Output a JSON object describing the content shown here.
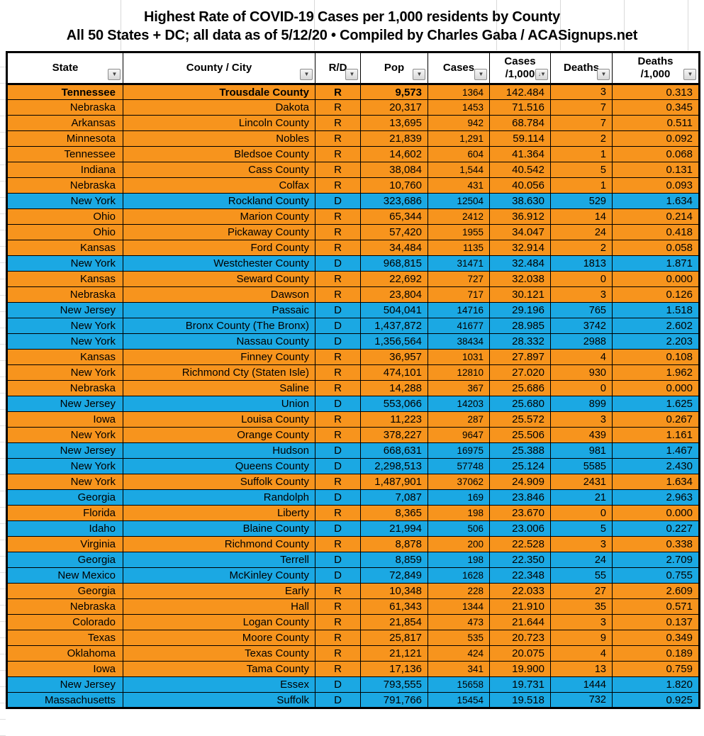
{
  "title": {
    "line1": "Highest Rate of COVID-19 Cases per 1,000 residents by County",
    "line2": "All 50 States + DC; all data as of 5/12/20  • Compiled by Charles Gaba / ACASignups.net"
  },
  "icons": {
    "filter": "▼",
    "filter_sorted": "↓▼"
  },
  "colors": {
    "republican_row": "#F7941D",
    "democrat_row": "#1BA8E3"
  },
  "table": {
    "columns": [
      {
        "key": "state",
        "label": "State"
      },
      {
        "key": "county",
        "label": "County / City"
      },
      {
        "key": "rd",
        "label": "R/D"
      },
      {
        "key": "pop",
        "label": "Pop"
      },
      {
        "key": "cases",
        "label": "Cases"
      },
      {
        "key": "cases_per_1000",
        "label": "Cases\n/1,000",
        "sorted": "desc"
      },
      {
        "key": "deaths",
        "label": "Deaths"
      },
      {
        "key": "deaths_per_1000",
        "label": "Deaths\n/1,000"
      }
    ],
    "rows": [
      {
        "state": "Tennessee",
        "county": "Trousdale County",
        "rd": "R",
        "pop": "9,573",
        "cases": "1364",
        "cases_per_1000": "142.484",
        "deaths": "3",
        "deaths_per_1000": "0.313",
        "bold": true
      },
      {
        "state": "Nebraska",
        "county": "Dakota",
        "rd": "R",
        "pop": "20,317",
        "cases": "1453",
        "cases_per_1000": "71.516",
        "deaths": "7",
        "deaths_per_1000": "0.345"
      },
      {
        "state": "Arkansas",
        "county": "Lincoln County",
        "rd": "R",
        "pop": "13,695",
        "cases": "942",
        "cases_per_1000": "68.784",
        "deaths": "7",
        "deaths_per_1000": "0.511"
      },
      {
        "state": "Minnesota",
        "county": "Nobles",
        "rd": "R",
        "pop": "21,839",
        "cases": "1,291",
        "cases_per_1000": "59.114",
        "deaths": "2",
        "deaths_per_1000": "0.092"
      },
      {
        "state": "Tennessee",
        "county": "Bledsoe County",
        "rd": "R",
        "pop": "14,602",
        "cases": "604",
        "cases_per_1000": "41.364",
        "deaths": "1",
        "deaths_per_1000": "0.068"
      },
      {
        "state": "Indiana",
        "county": "Cass County",
        "rd": "R",
        "pop": "38,084",
        "cases": "1,544",
        "cases_per_1000": "40.542",
        "deaths": "5",
        "deaths_per_1000": "0.131"
      },
      {
        "state": "Nebraska",
        "county": "Colfax",
        "rd": "R",
        "pop": "10,760",
        "cases": "431",
        "cases_per_1000": "40.056",
        "deaths": "1",
        "deaths_per_1000": "0.093"
      },
      {
        "state": "New York",
        "county": "Rockland County",
        "rd": "D",
        "pop": "323,686",
        "cases": "12504",
        "cases_per_1000": "38.630",
        "deaths": "529",
        "deaths_per_1000": "1.634"
      },
      {
        "state": "Ohio",
        "county": "Marion County",
        "rd": "R",
        "pop": "65,344",
        "cases": "2412",
        "cases_per_1000": "36.912",
        "deaths": "14",
        "deaths_per_1000": "0.214"
      },
      {
        "state": "Ohio",
        "county": "Pickaway County",
        "rd": "R",
        "pop": "57,420",
        "cases": "1955",
        "cases_per_1000": "34.047",
        "deaths": "24",
        "deaths_per_1000": "0.418"
      },
      {
        "state": "Kansas",
        "county": "Ford County",
        "rd": "R",
        "pop": "34,484",
        "cases": "1135",
        "cases_per_1000": "32.914",
        "deaths": "2",
        "deaths_per_1000": "0.058"
      },
      {
        "state": "New York",
        "county": "Westchester County",
        "rd": "D",
        "pop": "968,815",
        "cases": "31471",
        "cases_per_1000": "32.484",
        "deaths": "1813",
        "deaths_per_1000": "1.871"
      },
      {
        "state": "Kansas",
        "county": "Seward County",
        "rd": "R",
        "pop": "22,692",
        "cases": "727",
        "cases_per_1000": "32.038",
        "deaths": "0",
        "deaths_per_1000": "0.000"
      },
      {
        "state": "Nebraska",
        "county": "Dawson",
        "rd": "R",
        "pop": "23,804",
        "cases": "717",
        "cases_per_1000": "30.121",
        "deaths": "3",
        "deaths_per_1000": "0.126"
      },
      {
        "state": "New Jersey",
        "county": "Passaic",
        "rd": "D",
        "pop": "504,041",
        "cases": "14716",
        "cases_per_1000": "29.196",
        "deaths": "765",
        "deaths_per_1000": "1.518"
      },
      {
        "state": "New York",
        "county": "Bronx County (The Bronx)",
        "rd": "D",
        "pop": "1,437,872",
        "cases": "41677",
        "cases_per_1000": "28.985",
        "deaths": "3742",
        "deaths_per_1000": "2.602"
      },
      {
        "state": "New York",
        "county": "Nassau County",
        "rd": "D",
        "pop": "1,356,564",
        "cases": "38434",
        "cases_per_1000": "28.332",
        "deaths": "2988",
        "deaths_per_1000": "2.203"
      },
      {
        "state": "Kansas",
        "county": "Finney County",
        "rd": "R",
        "pop": "36,957",
        "cases": "1031",
        "cases_per_1000": "27.897",
        "deaths": "4",
        "deaths_per_1000": "0.108"
      },
      {
        "state": "New York",
        "county": "Richmond Cty (Staten Isle)",
        "rd": "R",
        "pop": "474,101",
        "cases": "12810",
        "cases_per_1000": "27.020",
        "deaths": "930",
        "deaths_per_1000": "1.962"
      },
      {
        "state": "Nebraska",
        "county": "Saline",
        "rd": "R",
        "pop": "14,288",
        "cases": "367",
        "cases_per_1000": "25.686",
        "deaths": "0",
        "deaths_per_1000": "0.000"
      },
      {
        "state": "New Jersey",
        "county": "Union",
        "rd": "D",
        "pop": "553,066",
        "cases": "14203",
        "cases_per_1000": "25.680",
        "deaths": "899",
        "deaths_per_1000": "1.625"
      },
      {
        "state": "Iowa",
        "county": "Louisa County",
        "rd": "R",
        "pop": "11,223",
        "cases": "287",
        "cases_per_1000": "25.572",
        "deaths": "3",
        "deaths_per_1000": "0.267"
      },
      {
        "state": "New York",
        "county": "Orange County",
        "rd": "R",
        "pop": "378,227",
        "cases": "9647",
        "cases_per_1000": "25.506",
        "deaths": "439",
        "deaths_per_1000": "1.161"
      },
      {
        "state": "New Jersey",
        "county": "Hudson",
        "rd": "D",
        "pop": "668,631",
        "cases": "16975",
        "cases_per_1000": "25.388",
        "deaths": "981",
        "deaths_per_1000": "1.467"
      },
      {
        "state": "New York",
        "county": "Queens County",
        "rd": "D",
        "pop": "2,298,513",
        "cases": "57748",
        "cases_per_1000": "25.124",
        "deaths": "5585",
        "deaths_per_1000": "2.430"
      },
      {
        "state": "New York",
        "county": "Suffolk County",
        "rd": "R",
        "pop": "1,487,901",
        "cases": "37062",
        "cases_per_1000": "24.909",
        "deaths": "2431",
        "deaths_per_1000": "1.634"
      },
      {
        "state": "Georgia",
        "county": "Randolph",
        "rd": "D",
        "pop": "7,087",
        "cases": "169",
        "cases_per_1000": "23.846",
        "deaths": "21",
        "deaths_per_1000": "2.963"
      },
      {
        "state": "Florida",
        "county": "Liberty",
        "rd": "R",
        "pop": "8,365",
        "cases": "198",
        "cases_per_1000": "23.670",
        "deaths": "0",
        "deaths_per_1000": "0.000"
      },
      {
        "state": "Idaho",
        "county": "Blaine County",
        "rd": "D",
        "pop": "21,994",
        "cases": "506",
        "cases_per_1000": "23.006",
        "deaths": "5",
        "deaths_per_1000": "0.227"
      },
      {
        "state": "Virginia",
        "county": "Richmond County",
        "rd": "R",
        "pop": "8,878",
        "cases": "200",
        "cases_per_1000": "22.528",
        "deaths": "3",
        "deaths_per_1000": "0.338"
      },
      {
        "state": "Georgia",
        "county": "Terrell",
        "rd": "D",
        "pop": "8,859",
        "cases": "198",
        "cases_per_1000": "22.350",
        "deaths": "24",
        "deaths_per_1000": "2.709"
      },
      {
        "state": "New Mexico",
        "county": "McKinley County",
        "rd": "D",
        "pop": "72,849",
        "cases": "1628",
        "cases_per_1000": "22.348",
        "deaths": "55",
        "deaths_per_1000": "0.755"
      },
      {
        "state": "Georgia",
        "county": "Early",
        "rd": "R",
        "pop": "10,348",
        "cases": "228",
        "cases_per_1000": "22.033",
        "deaths": "27",
        "deaths_per_1000": "2.609"
      },
      {
        "state": "Nebraska",
        "county": "Hall",
        "rd": "R",
        "pop": "61,343",
        "cases": "1344",
        "cases_per_1000": "21.910",
        "deaths": "35",
        "deaths_per_1000": "0.571"
      },
      {
        "state": "Colorado",
        "county": "Logan County",
        "rd": "R",
        "pop": "21,854",
        "cases": "473",
        "cases_per_1000": "21.644",
        "deaths": "3",
        "deaths_per_1000": "0.137"
      },
      {
        "state": "Texas",
        "county": "Moore County",
        "rd": "R",
        "pop": "25,817",
        "cases": "535",
        "cases_per_1000": "20.723",
        "deaths": "9",
        "deaths_per_1000": "0.349"
      },
      {
        "state": "Oklahoma",
        "county": "Texas County",
        "rd": "R",
        "pop": "21,121",
        "cases": "424",
        "cases_per_1000": "20.075",
        "deaths": "4",
        "deaths_per_1000": "0.189"
      },
      {
        "state": "Iowa",
        "county": "Tama County",
        "rd": "R",
        "pop": "17,136",
        "cases": "341",
        "cases_per_1000": "19.900",
        "deaths": "13",
        "deaths_per_1000": "0.759"
      },
      {
        "state": "New Jersey",
        "county": "Essex",
        "rd": "D",
        "pop": "793,555",
        "cases": "15658",
        "cases_per_1000": "19.731",
        "deaths": "1444",
        "deaths_per_1000": "1.820"
      },
      {
        "state": "Massachusetts",
        "county": "Suffolk",
        "rd": "D",
        "pop": "791,766",
        "cases": "15454",
        "cases_per_1000": "19.518",
        "deaths": "732",
        "deaths_per_1000": "0.925"
      }
    ]
  }
}
